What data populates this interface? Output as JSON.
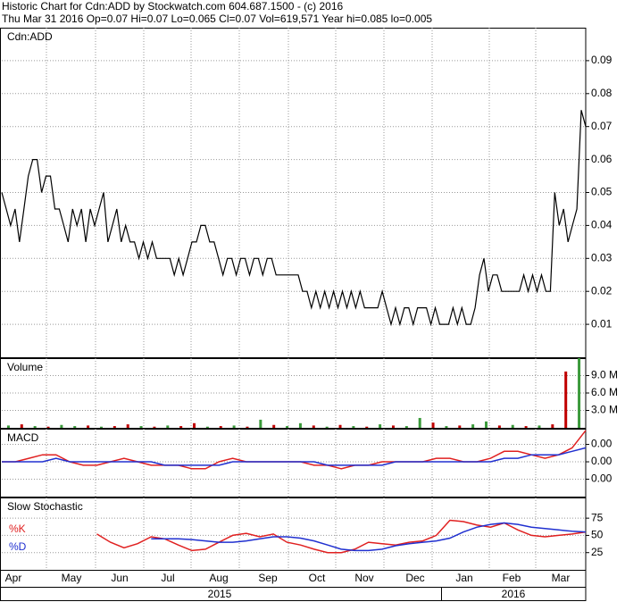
{
  "header": {
    "line1": "Historic Chart for Cdn:ADD by Stockwatch.com 604.687.1500 - (c) 2016",
    "line2": "Thu Mar 31 2016  Op=0.07  Hi=0.07  Lo=0.065  Cl=0.07  Vol=619,571  Year hi=0.085  lo=0.005"
  },
  "x_axis": {
    "months": [
      "Apr",
      "May",
      "Jun",
      "Jul",
      "Aug",
      "Sep",
      "Oct",
      "Nov",
      "Dec",
      "Jan",
      "Feb",
      "Mar"
    ],
    "years": [
      "2015",
      "2016"
    ]
  },
  "chart_data": [
    {
      "type": "line",
      "title": "Cdn:ADD",
      "ylim": [
        0,
        0.1
      ],
      "yticks": [
        0.01,
        0.02,
        0.03,
        0.04,
        0.05,
        0.06,
        0.07,
        0.08,
        0.09
      ],
      "grid": true,
      "series": [
        {
          "color": "#000000",
          "values": [
            0.05,
            0.045,
            0.04,
            0.045,
            0.035,
            0.045,
            0.055,
            0.06,
            0.06,
            0.05,
            0.055,
            0.055,
            0.045,
            0.045,
            0.04,
            0.035,
            0.045,
            0.04,
            0.045,
            0.035,
            0.045,
            0.04,
            0.045,
            0.05,
            0.035,
            0.04,
            0.045,
            0.035,
            0.04,
            0.035,
            0.035,
            0.03,
            0.035,
            0.03,
            0.035,
            0.03,
            0.03,
            0.03,
            0.03,
            0.025,
            0.03,
            0.025,
            0.03,
            0.035,
            0.035,
            0.04,
            0.04,
            0.035,
            0.035,
            0.03,
            0.025,
            0.03,
            0.03,
            0.025,
            0.03,
            0.03,
            0.025,
            0.03,
            0.03,
            0.025,
            0.03,
            0.03,
            0.025,
            0.025,
            0.025,
            0.025,
            0.025,
            0.025,
            0.02,
            0.02,
            0.015,
            0.02,
            0.015,
            0.02,
            0.015,
            0.02,
            0.015,
            0.02,
            0.015,
            0.02,
            0.015,
            0.02,
            0.015,
            0.015,
            0.015,
            0.015,
            0.02,
            0.015,
            0.01,
            0.015,
            0.01,
            0.015,
            0.015,
            0.01,
            0.015,
            0.015,
            0.015,
            0.01,
            0.015,
            0.01,
            0.01,
            0.01,
            0.015,
            0.01,
            0.015,
            0.01,
            0.01,
            0.015,
            0.025,
            0.03,
            0.02,
            0.025,
            0.025,
            0.02,
            0.02,
            0.02,
            0.02,
            0.02,
            0.025,
            0.02,
            0.025,
            0.02,
            0.025,
            0.02,
            0.02,
            0.05,
            0.04,
            0.045,
            0.035,
            0.04,
            0.045,
            0.075,
            0.07
          ]
        }
      ]
    },
    {
      "type": "bar",
      "title": "Volume",
      "ylim": [
        0,
        12000000
      ],
      "yticks": [
        {
          "value": 3000000,
          "label": "3.0 M"
        },
        {
          "value": 6000000,
          "label": "6.0 M"
        },
        {
          "value": 9000000,
          "label": "9.0 M"
        }
      ],
      "grid": true,
      "values": [
        400000,
        600000,
        300000,
        200000,
        500000,
        300000,
        400000,
        200000,
        300000,
        600000,
        300000,
        200000,
        400000,
        300000,
        800000,
        200000,
        300000,
        400000,
        200000,
        1400000,
        500000,
        300000,
        800000,
        400000,
        200000,
        500000,
        300000,
        200000,
        600000,
        400000,
        300000,
        1700000,
        900000,
        300000,
        400000,
        600000,
        1100000,
        400000,
        500000,
        300000,
        400000,
        600000,
        9700000,
        12000000
      ],
      "colors": [
        "#3a9a3a",
        "#c00000",
        "#3a9a3a",
        "#c00000",
        "#3a9a3a",
        "#3a9a3a",
        "#c00000",
        "#3a9a3a",
        "#c00000",
        "#c00000",
        "#3a9a3a",
        "#c00000",
        "#3a9a3a",
        "#c00000",
        "#c00000",
        "#3a9a3a",
        "#c00000",
        "#3a9a3a",
        "#c00000",
        "#3a9a3a",
        "#c00000",
        "#3a9a3a",
        "#3a9a3a",
        "#c00000",
        "#3a9a3a",
        "#c00000",
        "#3a9a3a",
        "#c00000",
        "#3a9a3a",
        "#c00000",
        "#3a9a3a",
        "#3a9a3a",
        "#c00000",
        "#3a9a3a",
        "#c00000",
        "#3a9a3a",
        "#3a9a3a",
        "#c00000",
        "#3a9a3a",
        "#c00000",
        "#3a9a3a",
        "#c00000",
        "#c00000",
        "#3a9a3a"
      ]
    },
    {
      "type": "line",
      "title": "MACD",
      "ylim": [
        -0.01,
        0.0095
      ],
      "yticks": [
        {
          "value": 0.005,
          "label": "0.00"
        },
        {
          "value": 0,
          "label": "0.00"
        },
        {
          "value": -0.005,
          "label": "0.00"
        }
      ],
      "grid": true,
      "series": [
        {
          "color": "#e02020",
          "values": [
            0,
            0,
            0.001,
            0.002,
            0.002,
            0,
            -0.001,
            -0.001,
            0,
            0.001,
            0,
            -0.001,
            -0.001,
            -0.001,
            -0.002,
            -0.002,
            0,
            0.001,
            0,
            0,
            0,
            0,
            0,
            -0.001,
            -0.001,
            -0.002,
            -0.001,
            -0.001,
            0,
            0,
            0,
            0,
            0.001,
            0.001,
            0,
            0,
            0.001,
            0.003,
            0.003,
            0.002,
            0.001,
            0.002,
            0.004,
            0.009
          ]
        },
        {
          "color": "#2030d0",
          "values": [
            0,
            0,
            0,
            0,
            0.001,
            0,
            0,
            0,
            0,
            0,
            0,
            0,
            -0.001,
            -0.001,
            -0.001,
            -0.001,
            -0.001,
            0,
            0,
            0,
            0,
            0,
            0,
            0,
            -0.001,
            -0.001,
            -0.001,
            -0.001,
            -0.001,
            0,
            0,
            0,
            0,
            0,
            0,
            0,
            0,
            0.001,
            0.001,
            0.002,
            0.002,
            0.002,
            0.003,
            0.004
          ]
        }
      ]
    },
    {
      "type": "line",
      "title": "Slow Stochastic",
      "ylim": [
        0,
        105
      ],
      "yticks": [
        25,
        50,
        75
      ],
      "grid": true,
      "series": [
        {
          "name": "%K",
          "color": "#e02020",
          "values": [
            null,
            null,
            null,
            null,
            null,
            null,
            null,
            52,
            40,
            32,
            38,
            48,
            45,
            36,
            28,
            30,
            40,
            50,
            53,
            48,
            52,
            40,
            36,
            30,
            25,
            25,
            30,
            40,
            38,
            36,
            40,
            42,
            50,
            72,
            70,
            65,
            62,
            68,
            58,
            50,
            48,
            50,
            52,
            55
          ]
        },
        {
          "name": "%D",
          "color": "#2030d0",
          "values": [
            null,
            null,
            null,
            null,
            null,
            null,
            null,
            null,
            null,
            null,
            null,
            45,
            45,
            45,
            44,
            42,
            40,
            40,
            42,
            45,
            48,
            48,
            46,
            42,
            36,
            30,
            28,
            28,
            30,
            35,
            38,
            40,
            42,
            46,
            55,
            62,
            66,
            68,
            66,
            62,
            60,
            58,
            56,
            55
          ]
        }
      ]
    }
  ]
}
